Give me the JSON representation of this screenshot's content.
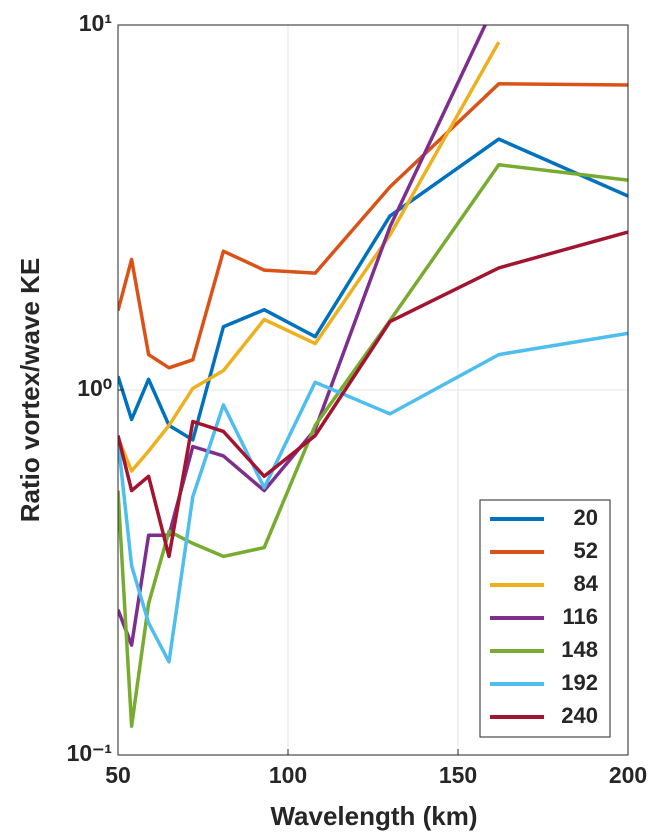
{
  "chart_data": {
    "type": "line",
    "xlabel": "Wavelength (km)",
    "ylabel": "Ratio vortex/wave KE",
    "x": [
      50,
      54,
      59,
      65,
      72,
      81,
      93,
      108,
      130,
      162,
      200
    ],
    "xlim": [
      50,
      200
    ],
    "xticks": [
      50,
      100,
      150,
      200
    ],
    "ylim": [
      0.1,
      10
    ],
    "yscale": "log",
    "yticks": [
      {
        "value": 0.1,
        "label": "10⁻¹"
      },
      {
        "value": 1,
        "label": "10⁰"
      },
      {
        "value": 10,
        "label": "10¹"
      }
    ],
    "grid": true,
    "legend": "lower right",
    "series": [
      {
        "name": "20",
        "color": "#0072bd",
        "values": [
          1.09,
          0.83,
          1.07,
          0.8,
          0.73,
          1.49,
          1.66,
          1.4,
          3.0,
          4.87,
          3.4
        ]
      },
      {
        "name": "52",
        "color": "#d95319",
        "values": [
          1.65,
          2.28,
          1.25,
          1.15,
          1.21,
          2.4,
          2.13,
          2.09,
          3.6,
          6.9,
          6.85
        ]
      },
      {
        "name": "84",
        "color": "#edb120",
        "values": [
          0.74,
          0.6,
          0.68,
          0.8,
          1.01,
          1.13,
          1.56,
          1.34,
          2.66,
          8.98,
          null
        ]
      },
      {
        "name": "116",
        "color": "#7e2f8e",
        "values": [
          0.25,
          0.2,
          0.4,
          0.4,
          0.7,
          0.66,
          0.53,
          0.78,
          2.8,
          12,
          null
        ]
      },
      {
        "name": "148",
        "color": "#77ac30",
        "values": [
          0.53,
          0.12,
          0.26,
          0.41,
          0.38,
          0.35,
          0.37,
          0.8,
          1.55,
          4.14,
          3.76
        ]
      },
      {
        "name": "192",
        "color": "#4dbeee",
        "values": [
          0.73,
          0.33,
          0.23,
          0.18,
          0.51,
          0.91,
          0.54,
          1.05,
          0.86,
          1.25,
          1.43
        ]
      },
      {
        "name": "240",
        "color": "#a2142f",
        "values": [
          0.75,
          0.53,
          0.58,
          0.35,
          0.82,
          0.77,
          0.58,
          0.75,
          1.54,
          2.16,
          2.71
        ]
      }
    ]
  }
}
